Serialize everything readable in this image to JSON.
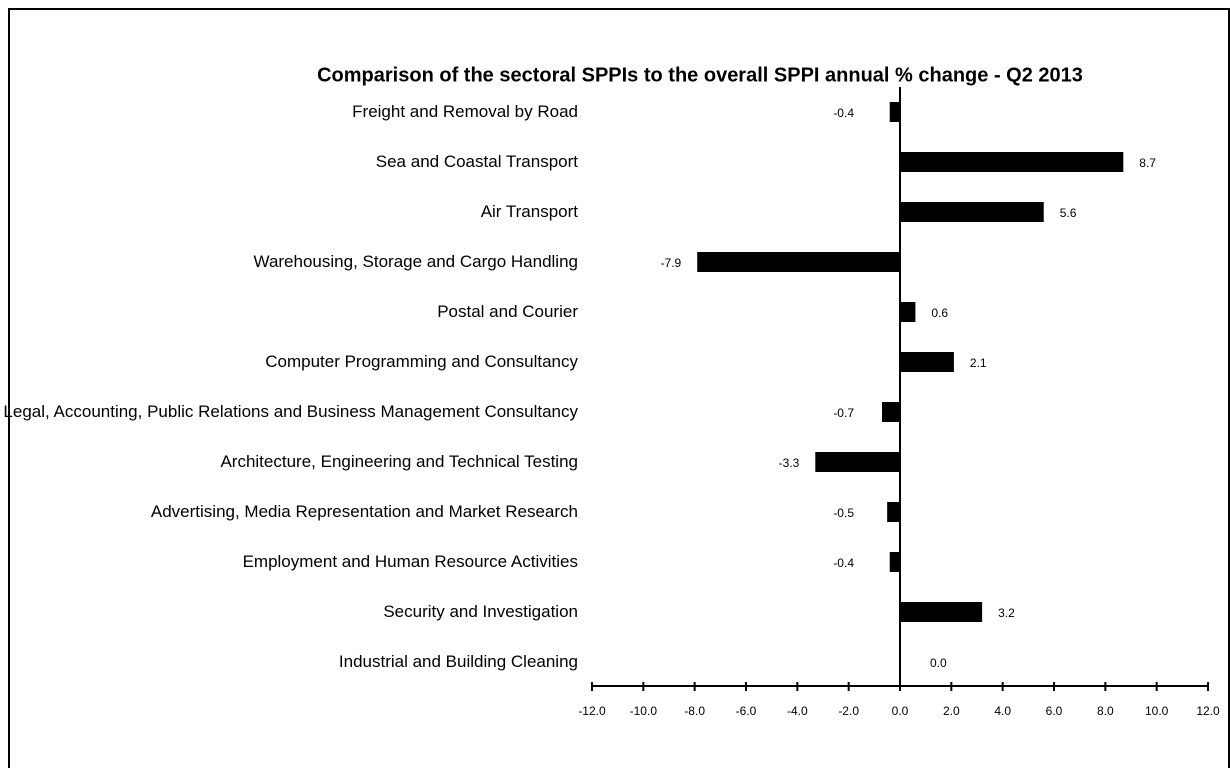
{
  "chart_data": {
    "type": "bar",
    "orientation": "horizontal",
    "title": "Comparison of the sectoral SPPIs to the overall SPPI annual % change - Q2 2013",
    "categories": [
      "Freight and Removal by Road",
      "Sea and Coastal Transport",
      "Air Transport",
      "Warehousing, Storage and Cargo Handling",
      "Postal and Courier",
      "Computer Programming and Consultancy",
      "Legal, Accounting, Public Relations and Business Management Consultancy",
      "Architecture, Engineering and Technical Testing",
      "Advertising, Media Representation and Market Research",
      "Employment and Human Resource Activities",
      "Security and Investigation",
      "Industrial and Building Cleaning"
    ],
    "values": [
      -0.4,
      8.7,
      5.6,
      -7.9,
      0.6,
      2.1,
      -0.7,
      -3.3,
      -0.5,
      -0.4,
      3.2,
      0.0
    ],
    "value_labels": [
      "-0.4",
      "8.7",
      "5.6",
      "-7.9",
      "0.6",
      "2.1",
      "-0.7",
      "-3.3",
      "-0.5",
      "-0.4",
      "3.2",
      "0.0"
    ],
    "color": "#000000",
    "xlim": [
      -12,
      12
    ],
    "xticks": [
      {
        "value": -12,
        "label": "-12.0"
      },
      {
        "value": -10,
        "label": "-10.0"
      },
      {
        "value": -8,
        "label": "-8.0"
      },
      {
        "value": -6,
        "label": "-6.0"
      },
      {
        "value": -4,
        "label": "-4.0"
      },
      {
        "value": -2,
        "label": "-2.0"
      },
      {
        "value": 0,
        "label": "0.0"
      },
      {
        "value": 2,
        "label": "2.0"
      },
      {
        "value": 4,
        "label": "4.0"
      },
      {
        "value": 6,
        "label": "6.0"
      },
      {
        "value": 8,
        "label": "8.0"
      },
      {
        "value": 10,
        "label": "10.0"
      },
      {
        "value": 12,
        "label": "12.0"
      }
    ],
    "grid": false
  }
}
